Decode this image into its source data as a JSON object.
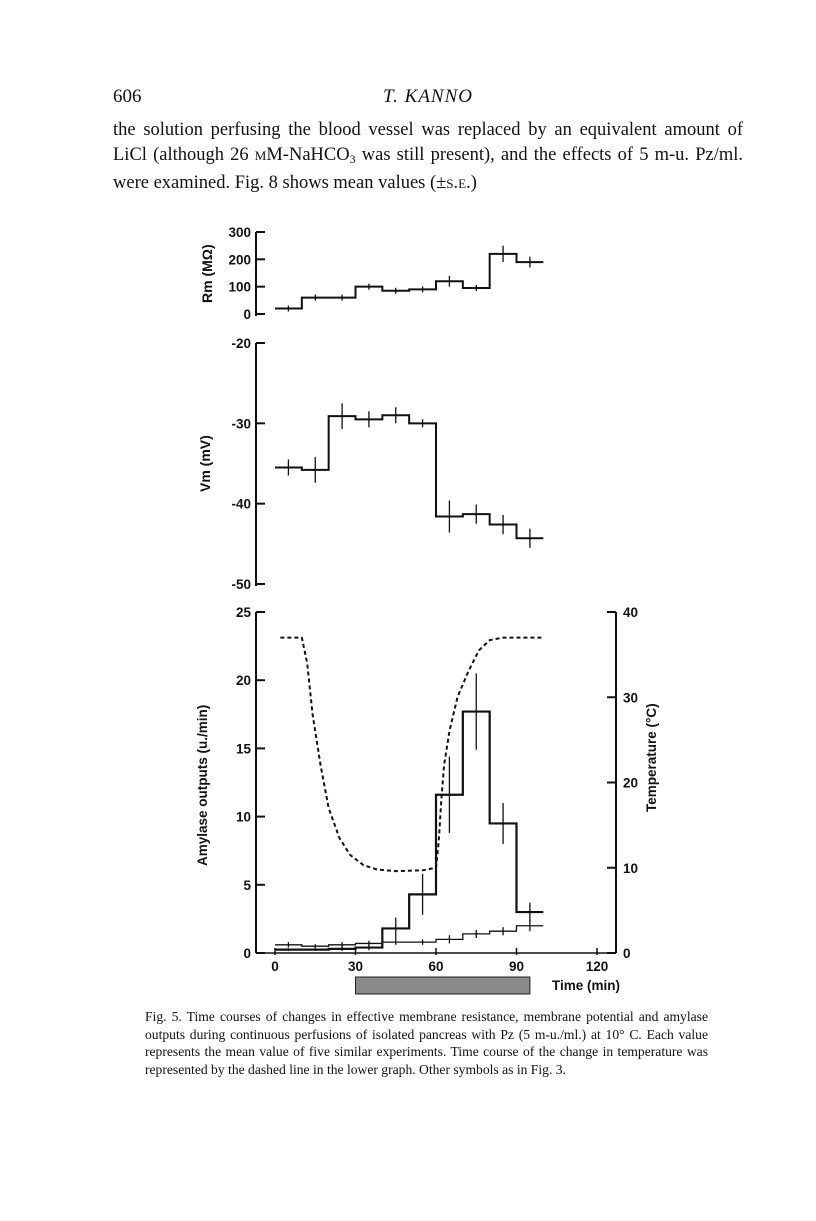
{
  "header": {
    "page_number": "606",
    "running_head": "T. KANNO"
  },
  "body": {
    "text_part1": "the solution perfusing the blood vessel was replaced by an equivalent amount of LiCl (although 26 ",
    "text_mm": "mM",
    "text_part2": "-NaHCO",
    "text_sub": "3",
    "text_part3": " was still present), and the effects of 5 m-u. Pz/ml. were examined. Fig. 8 shows mean values (",
    "text_se": "±s.e.",
    "text_part4": ")"
  },
  "caption": {
    "text": "Fig. 5. Time courses of changes in effective membrane resistance, membrane potential and amylase outputs during continuous perfusions of isolated pancreas with Pz (5 m-u./ml.) at 10° C. Each value represents the mean value of five similar experiments. Time course of the change in temperature was represented by the dashed line in the lower graph. Other symbols as in Fig. 3."
  },
  "chart_data": [
    {
      "type": "line",
      "subtype": "step",
      "ylabel": "Rm (MΩ)",
      "ylim": [
        0,
        300
      ],
      "yticks": [
        "300",
        "200",
        "100",
        "0"
      ],
      "x_units": "min",
      "points": [
        {
          "x": 5,
          "y": 20,
          "err": 0
        },
        {
          "x": 15,
          "y": 60,
          "err": 0
        },
        {
          "x": 25,
          "y": 60,
          "err": 0
        },
        {
          "x": 35,
          "y": 100,
          "err": 0
        },
        {
          "x": 45,
          "y": 85,
          "err": 0
        },
        {
          "x": 55,
          "y": 90,
          "err": 0
        },
        {
          "x": 65,
          "y": 120,
          "err": 20
        },
        {
          "x": 75,
          "y": 95,
          "err": 0
        },
        {
          "x": 85,
          "y": 220,
          "err": 30
        },
        {
          "x": 95,
          "y": 190,
          "err": 20
        }
      ]
    },
    {
      "type": "line",
      "subtype": "step",
      "ylabel": "Vm (mV)",
      "ylim": [
        -50,
        -20
      ],
      "yticks": [
        "-20",
        "-30",
        "-40",
        "-50"
      ],
      "x_units": "min",
      "points": [
        {
          "x": 5,
          "y": -35.5,
          "err": 1
        },
        {
          "x": 15,
          "y": -35.8,
          "err": 1.6
        },
        {
          "x": 25,
          "y": -29.1,
          "err": 1.6
        },
        {
          "x": 35,
          "y": -29.5,
          "err": 1
        },
        {
          "x": 45,
          "y": -29.0,
          "err": 1
        },
        {
          "x": 55,
          "y": -30.0,
          "err": 0.5
        },
        {
          "x": 65,
          "y": -41.6,
          "err": 2
        },
        {
          "x": 75,
          "y": -41.3,
          "err": 1.2
        },
        {
          "x": 85,
          "y": -42.6,
          "err": 1.2
        },
        {
          "x": 95,
          "y": -44.3,
          "err": 1.2
        }
      ]
    },
    {
      "type": "line",
      "subtype": "step",
      "ylabel": "Amylase outputs (u./min)",
      "y2label": "Temperature (°C)",
      "xlabel": "Time (min)",
      "xlim": [
        0,
        120
      ],
      "xticks": [
        "0",
        "30",
        "60",
        "90",
        "120"
      ],
      "ylim": [
        0,
        25
      ],
      "yticks": [
        "0",
        "5",
        "10",
        "15",
        "20",
        "25"
      ],
      "y2lim": [
        0,
        40
      ],
      "y2ticks": [
        "0",
        "10",
        "20",
        "30",
        "40"
      ],
      "stimulus_bar": {
        "start": 30,
        "end": 95
      },
      "series": [
        {
          "points": [
            {
              "x": 5,
              "y": 0.25,
              "err": 0.1
            },
            {
              "x": 15,
              "y": 0.25,
              "err": 0.1
            },
            {
              "x": 25,
              "y": 0.3,
              "err": 0.15
            },
            {
              "x": 35,
              "y": 0.4,
              "err": 0.2
            },
            {
              "x": 45,
              "y": 1.8,
              "err": 0.8
            },
            {
              "x": 55,
              "y": 4.3,
              "err": 1.5
            },
            {
              "x": 65,
              "y": 11.6,
              "err": 2.8
            },
            {
              "x": 75,
              "y": 17.7,
              "err": 2.8
            },
            {
              "x": 85,
              "y": 9.5,
              "err": 1.5
            },
            {
              "x": 95,
              "y": 3.0,
              "err": 0.7
            }
          ]
        },
        {
          "points": [
            {
              "x": 5,
              "y": 0.6,
              "err": 0.2
            },
            {
              "x": 15,
              "y": 0.5,
              "err": 0.15
            },
            {
              "x": 25,
              "y": 0.6,
              "err": 0.2
            },
            {
              "x": 35,
              "y": 0.7,
              "err": 0.2
            },
            {
              "x": 45,
              "y": 0.8,
              "err": 0.2
            },
            {
              "x": 55,
              "y": 0.8,
              "err": 0.2
            },
            {
              "x": 65,
              "y": 1.0,
              "err": 0.3
            },
            {
              "x": 75,
              "y": 1.4,
              "err": 0.3
            },
            {
              "x": 85,
              "y": 1.6,
              "err": 0.3
            },
            {
              "x": 95,
              "y": 2.0,
              "err": 0.4
            }
          ]
        },
        {
          "axis": "right",
          "style": "dashed",
          "points": [
            {
              "x": 2,
              "y": 37
            },
            {
              "x": 10,
              "y": 37
            },
            {
              "x": 12,
              "y": 34
            },
            {
              "x": 14,
              "y": 28
            },
            {
              "x": 17,
              "y": 22
            },
            {
              "x": 20,
              "y": 17
            },
            {
              "x": 24,
              "y": 13.5
            },
            {
              "x": 28,
              "y": 11.5
            },
            {
              "x": 33,
              "y": 10.3
            },
            {
              "x": 38,
              "y": 9.8
            },
            {
              "x": 45,
              "y": 9.6
            },
            {
              "x": 55,
              "y": 9.7
            },
            {
              "x": 60,
              "y": 10
            },
            {
              "x": 61,
              "y": 13
            },
            {
              "x": 62,
              "y": 18
            },
            {
              "x": 63,
              "y": 22
            },
            {
              "x": 65,
              "y": 26
            },
            {
              "x": 68,
              "y": 30
            },
            {
              "x": 72,
              "y": 33
            },
            {
              "x": 76,
              "y": 35.5
            },
            {
              "x": 80,
              "y": 36.7
            },
            {
              "x": 85,
              "y": 37
            },
            {
              "x": 100,
              "y": 37
            }
          ]
        }
      ]
    }
  ]
}
